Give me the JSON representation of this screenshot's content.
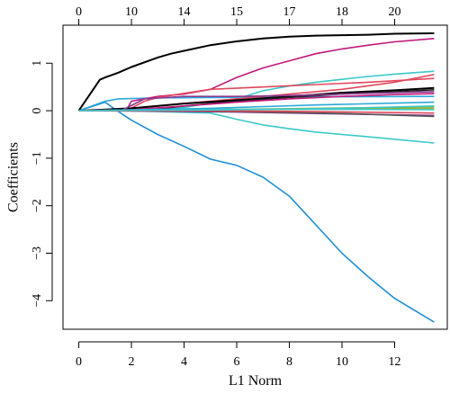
{
  "chart_data": {
    "type": "line",
    "title": "",
    "xlabel": "L1 Norm",
    "ylabel": "Coefficients",
    "xlim": [
      -0.6,
      14.0
    ],
    "ylim": [
      -4.6,
      1.8
    ],
    "x_ticks": [
      0,
      2,
      4,
      6,
      8,
      10,
      12
    ],
    "x_tick_labels": [
      "0",
      "2",
      "4",
      "6",
      "8",
      "10",
      "12"
    ],
    "y_ticks": [
      -4,
      -3,
      -2,
      -1,
      0,
      1
    ],
    "y_tick_labels": [
      "−4",
      "−3",
      "−2",
      "−1",
      "0",
      "1"
    ],
    "top_axis": {
      "ticks": [
        0,
        2,
        4,
        6,
        8,
        10,
        12
      ],
      "labels": [
        "0",
        "10",
        "14",
        "15",
        "17",
        "18",
        "20"
      ]
    },
    "grid": false,
    "legend": "none",
    "series": [
      {
        "color": "#000000",
        "points": [
          [
            0,
            0
          ],
          [
            0.8,
            0.65
          ],
          [
            1.0,
            0.7
          ],
          [
            1.5,
            0.8
          ],
          [
            2,
            0.92
          ],
          [
            3,
            1.12
          ],
          [
            3.5,
            1.2
          ],
          [
            4,
            1.26
          ],
          [
            5,
            1.38
          ],
          [
            6,
            1.46
          ],
          [
            7,
            1.52
          ],
          [
            8,
            1.56
          ],
          [
            9,
            1.58
          ],
          [
            10,
            1.59
          ],
          [
            11,
            1.6
          ],
          [
            12,
            1.62
          ],
          [
            13.5,
            1.63
          ]
        ]
      },
      {
        "color": "#1f8fd6",
        "points": [
          [
            0,
            0
          ],
          [
            1.0,
            0.18
          ],
          [
            1.4,
            0.02
          ],
          [
            2,
            -0.2
          ],
          [
            3,
            -0.5
          ],
          [
            4,
            -0.75
          ],
          [
            5,
            -1.02
          ],
          [
            6,
            -1.15
          ],
          [
            7,
            -1.4
          ],
          [
            8,
            -1.8
          ],
          [
            9,
            -2.4
          ],
          [
            10,
            -3.0
          ],
          [
            11,
            -3.5
          ],
          [
            12,
            -3.95
          ],
          [
            13.5,
            -4.45
          ]
        ]
      },
      {
        "color": "#2ba8d8",
        "points": [
          [
            0,
            0
          ],
          [
            1.0,
            0.2
          ],
          [
            1.5,
            0.25
          ],
          [
            3,
            0.27
          ],
          [
            6,
            0.28
          ],
          [
            9,
            0.29
          ],
          [
            13.5,
            0.3
          ]
        ]
      },
      {
        "color": "#c2187a",
        "points": [
          [
            0,
            0
          ],
          [
            1.8,
            0
          ],
          [
            2,
            0.2
          ],
          [
            3,
            0.3
          ],
          [
            4,
            0.35
          ],
          [
            5,
            0.45
          ],
          [
            6,
            0.7
          ],
          [
            7,
            0.9
          ],
          [
            8,
            1.05
          ],
          [
            9,
            1.2
          ],
          [
            10,
            1.3
          ],
          [
            11,
            1.38
          ],
          [
            12,
            1.45
          ],
          [
            13.5,
            1.52
          ]
        ]
      },
      {
        "color": "#3cc8c8",
        "points": [
          [
            0,
            0
          ],
          [
            2,
            0.03
          ],
          [
            4,
            0.07
          ],
          [
            6,
            0.25
          ],
          [
            7,
            0.42
          ],
          [
            8,
            0.52
          ],
          [
            9,
            0.6
          ],
          [
            10,
            0.66
          ],
          [
            11,
            0.72
          ],
          [
            12,
            0.77
          ],
          [
            13.5,
            0.83
          ]
        ]
      },
      {
        "color": "#e0475c",
        "points": [
          [
            0,
            0
          ],
          [
            1.8,
            0
          ],
          [
            2.5,
            0.2
          ],
          [
            3,
            0.28
          ],
          [
            5,
            0.45
          ],
          [
            7,
            0.5
          ],
          [
            9,
            0.55
          ],
          [
            11,
            0.6
          ],
          [
            13.5,
            0.68
          ]
        ]
      },
      {
        "color": "#e0475c",
        "points": [
          [
            0,
            0
          ],
          [
            2,
            0.04
          ],
          [
            4,
            0.15
          ],
          [
            6,
            0.25
          ],
          [
            8,
            0.35
          ],
          [
            10,
            0.45
          ],
          [
            12,
            0.6
          ],
          [
            13.5,
            0.76
          ]
        ]
      },
      {
        "color": "#000000",
        "points": [
          [
            0,
            0
          ],
          [
            2,
            0.05
          ],
          [
            4,
            0.15
          ],
          [
            6,
            0.22
          ],
          [
            8,
            0.3
          ],
          [
            10,
            0.38
          ],
          [
            12,
            0.43
          ],
          [
            13.5,
            0.48
          ]
        ]
      },
      {
        "color": "#222222",
        "points": [
          [
            0,
            0
          ],
          [
            2.5,
            0
          ],
          [
            4,
            0.1
          ],
          [
            6,
            0.2
          ],
          [
            8,
            0.28
          ],
          [
            10,
            0.35
          ],
          [
            12,
            0.4
          ],
          [
            13.5,
            0.44
          ]
        ]
      },
      {
        "color": "#8b3a8f",
        "points": [
          [
            0,
            0
          ],
          [
            1.6,
            0
          ],
          [
            2.5,
            0.25
          ],
          [
            4,
            0.3
          ],
          [
            6,
            0.3
          ],
          [
            8,
            0.32
          ],
          [
            10,
            0.35
          ],
          [
            12,
            0.38
          ],
          [
            13.5,
            0.4
          ]
        ]
      },
      {
        "color": "#c2187a",
        "points": [
          [
            0,
            0
          ],
          [
            2,
            0.02
          ],
          [
            4,
            0.1
          ],
          [
            6,
            0.18
          ],
          [
            8,
            0.25
          ],
          [
            10,
            0.3
          ],
          [
            12,
            0.34
          ],
          [
            13.5,
            0.36
          ]
        ]
      },
      {
        "color": "#3cc8c8",
        "points": [
          [
            0,
            0
          ],
          [
            1.6,
            0
          ],
          [
            3,
            -0.02
          ],
          [
            5,
            -0.05
          ],
          [
            6,
            -0.18
          ],
          [
            7,
            -0.3
          ],
          [
            8,
            -0.38
          ],
          [
            9,
            -0.45
          ],
          [
            10,
            -0.5
          ],
          [
            11,
            -0.55
          ],
          [
            12,
            -0.6
          ],
          [
            13.5,
            -0.68
          ]
        ]
      },
      {
        "color": "#8fb339",
        "points": [
          [
            0,
            0
          ],
          [
            3,
            0.02
          ],
          [
            6,
            0.03
          ],
          [
            9,
            0.05
          ],
          [
            13.5,
            0.08
          ]
        ]
      },
      {
        "color": "#8fb339",
        "points": [
          [
            0,
            0
          ],
          [
            3,
            0.01
          ],
          [
            6,
            0.02
          ],
          [
            9,
            0.03
          ],
          [
            13.5,
            0.05
          ]
        ]
      },
      {
        "color": "#3cc8c8",
        "points": [
          [
            0,
            0
          ],
          [
            3,
            0.02
          ],
          [
            6,
            0.03
          ],
          [
            9,
            0.03
          ],
          [
            13.5,
            0.02
          ]
        ]
      },
      {
        "color": "#8b3a8f",
        "points": [
          [
            0,
            0
          ],
          [
            3,
            -0.01
          ],
          [
            6,
            -0.03
          ],
          [
            9,
            -0.06
          ],
          [
            13.5,
            -0.1
          ]
        ]
      },
      {
        "color": "#555555",
        "points": [
          [
            0,
            0
          ],
          [
            4,
            0
          ],
          [
            7,
            -0.03
          ],
          [
            10,
            -0.06
          ],
          [
            13.5,
            -0.12
          ]
        ]
      },
      {
        "color": "#2ba8d8",
        "points": [
          [
            0,
            0
          ],
          [
            5,
            0.05
          ],
          [
            9,
            0.12
          ],
          [
            13.5,
            0.18
          ]
        ]
      },
      {
        "color": "#e0475c",
        "points": [
          [
            0,
            0
          ],
          [
            5,
            0.0
          ],
          [
            9,
            -0.02
          ],
          [
            13.5,
            -0.05
          ]
        ]
      },
      {
        "color": "#3cc8c8",
        "points": [
          [
            0,
            0
          ],
          [
            6,
            0.02
          ],
          [
            10,
            0.05
          ],
          [
            13.5,
            0.1
          ]
        ]
      }
    ]
  }
}
